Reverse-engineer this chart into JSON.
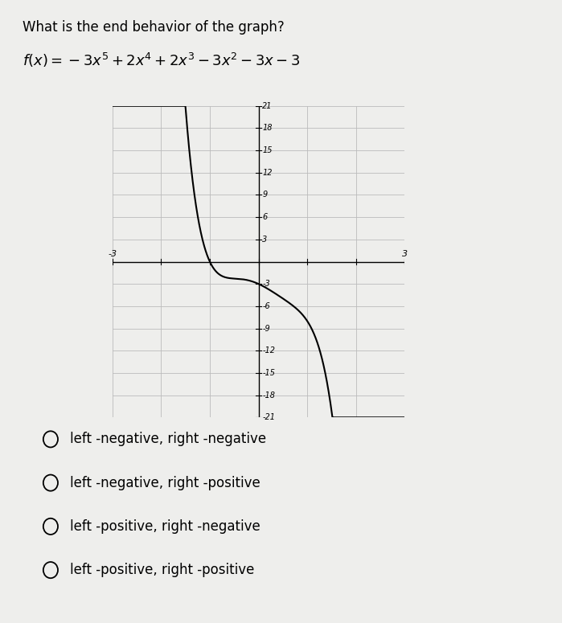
{
  "title": "What is the end behavior of the graph?",
  "formula_latex": "$f(x) = -3x^5 + 2x^4 + 2x^3 - 3x^2 - 3x - 3$",
  "xlim": [
    -3,
    3
  ],
  "ylim": [
    -21,
    21
  ],
  "yticks": [
    -21,
    -18,
    -15,
    -12,
    -9,
    -6,
    -3,
    3,
    6,
    9,
    12,
    15,
    18,
    21
  ],
  "curve_color": "#000000",
  "bg_color": "#eeeeec",
  "grid_color": "#bbbbbb",
  "options": [
    "left -negative, right -negative",
    "left -negative, right -positive",
    "left -positive, right -negative",
    "left -positive, right -positive"
  ],
  "fig_width": 6.99,
  "fig_height": 7.75,
  "dpi": 100
}
